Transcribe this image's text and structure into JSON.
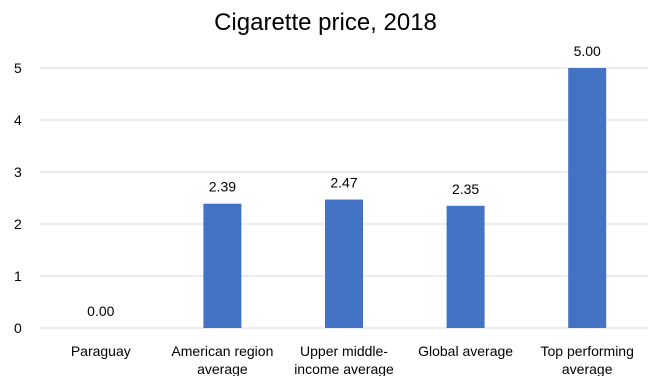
{
  "chart_data": {
    "type": "bar",
    "title": "Cigarette price, 2018",
    "categories": [
      [
        "Paraguay"
      ],
      [
        "American region",
        "average"
      ],
      [
        "Upper middle-",
        "income average"
      ],
      [
        "Global average"
      ],
      [
        "Top performing",
        "average"
      ]
    ],
    "values": [
      0.0,
      2.39,
      2.47,
      2.35,
      5.0
    ],
    "data_labels": [
      "0.00",
      "2.39",
      "2.47",
      "2.35",
      "5.00"
    ],
    "yticks": [
      0,
      1,
      2,
      3,
      4,
      5
    ],
    "ylim": [
      0,
      5
    ],
    "grid": true,
    "bar_color": "#4472c4",
    "xlabel": "",
    "ylabel": ""
  }
}
